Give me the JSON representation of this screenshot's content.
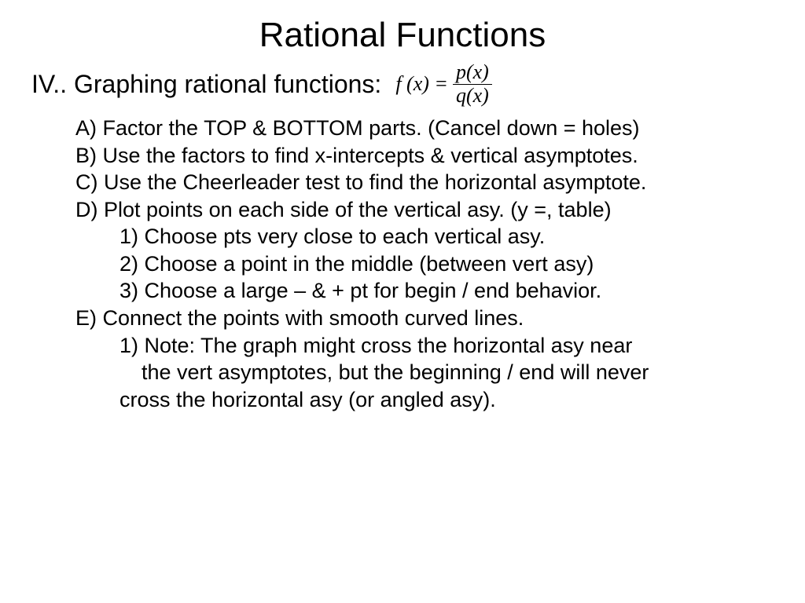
{
  "title": "Rational Functions",
  "section": {
    "label": "IV.. Graphing rational functions:",
    "formula_lhs": "f (x) =",
    "formula_num": "p(x)",
    "formula_den": "q(x)"
  },
  "items": {
    "a": "A) Factor the TOP & BOTTOM parts. (Cancel down = holes)",
    "b": "B) Use the factors to find x-intercepts & vertical asymptotes.",
    "c": "C) Use the Cheerleader test to find the horizontal asymptote.",
    "d": "D) Plot points on each side of the vertical asy. (y =, table)",
    "d1": "1) Choose pts very close to each vertical asy.",
    "d2": "2) Choose a point in the middle (between vert asy)",
    "d3": "3) Choose a large – & + pt for begin / end behavior.",
    "e": "E) Connect the points with smooth curved lines.",
    "e1": "1) Note: The graph might cross the horizontal asy near",
    "e1b": "the vert asymptotes, but the beginning / end will never",
    "e1c": "cross the horizontal asy (or angled asy)."
  },
  "colors": {
    "text": "#000000",
    "background": "#ffffff"
  },
  "typography": {
    "title_fontsize": 44,
    "section_fontsize": 32,
    "body_fontsize": 27,
    "font_family": "Arial"
  }
}
